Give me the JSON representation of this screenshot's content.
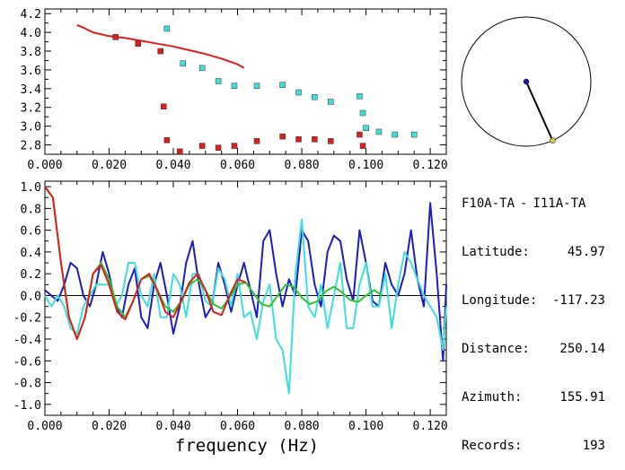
{
  "station_info": {
    "pair_a": "F10A-TA",
    "separator": "-",
    "pair_b": "I11A-TA",
    "fields": [
      {
        "label": "Latitude:",
        "value": "45.97"
      },
      {
        "label": "Longitude:",
        "value": "-117.23"
      },
      {
        "label": "Distance:",
        "value": "250.14"
      },
      {
        "label": "Azimuth:",
        "value": "155.91"
      },
      {
        "label": "Records:",
        "value": "193"
      }
    ]
  },
  "azimuth_dial": {
    "azimuth_deg": 155.91,
    "center_color": "#1a1aa6",
    "tip_color": "#d4c84a"
  },
  "colors": {
    "red": "#dd1c1c",
    "cyan": "#3fdede",
    "blue": "#1c1cc0",
    "green": "#28c828",
    "axis": "#000000"
  },
  "chart_data": [
    {
      "type": "scatter",
      "title": "",
      "xlabel": "",
      "ylabel": "",
      "xlim": [
        0.0,
        0.125
      ],
      "ylim": [
        2.7,
        4.25
      ],
      "xticks": [
        "0.000",
        "0.020",
        "0.040",
        "0.060",
        "0.080",
        "0.100",
        "0.120"
      ],
      "yticks": [
        "2.8",
        "3.0",
        "3.2",
        "3.4",
        "3.6",
        "3.8",
        "4.0",
        "4.2"
      ],
      "series": [
        {
          "kind": "line",
          "color": "#dd1c1c",
          "x": [
            0.01,
            0.012,
            0.015,
            0.02,
            0.025,
            0.03,
            0.035,
            0.04,
            0.045,
            0.05,
            0.055,
            0.06,
            0.062
          ],
          "y": [
            4.08,
            4.05,
            4.0,
            3.96,
            3.94,
            3.91,
            3.88,
            3.85,
            3.81,
            3.77,
            3.72,
            3.66,
            3.62
          ]
        },
        {
          "kind": "points",
          "color": "#3fdede",
          "x": [
            0.038,
            0.043,
            0.049,
            0.054,
            0.059,
            0.066,
            0.074,
            0.079,
            0.084,
            0.089,
            0.098,
            0.099,
            0.1,
            0.104,
            0.109,
            0.115
          ],
          "y": [
            4.04,
            3.67,
            3.62,
            3.48,
            3.43,
            3.43,
            3.44,
            3.36,
            3.31,
            3.26,
            3.32,
            3.14,
            2.98,
            2.94,
            2.91,
            2.91
          ]
        },
        {
          "kind": "points",
          "color": "#dd1c1c",
          "x": [
            0.022,
            0.029,
            0.036,
            0.037,
            0.038,
            0.042,
            0.049,
            0.054,
            0.059,
            0.066,
            0.074,
            0.079,
            0.084,
            0.089,
            0.098,
            0.099
          ],
          "y": [
            3.95,
            3.88,
            3.8,
            3.21,
            2.85,
            2.73,
            2.79,
            2.77,
            2.79,
            2.84,
            2.89,
            2.86,
            2.86,
            2.84,
            2.91,
            2.79
          ]
        }
      ]
    },
    {
      "type": "line",
      "title": "",
      "xlabel": "frequency (Hz)",
      "ylabel": "",
      "xlim": [
        0.0,
        0.125
      ],
      "ylim": [
        -1.1,
        1.05
      ],
      "xticks": [
        "0.000",
        "0.020",
        "0.040",
        "0.060",
        "0.080",
        "0.100",
        "0.120"
      ],
      "yticks": [
        "1.0",
        "0.8",
        "0.6",
        "0.4",
        "0.2",
        "0.0",
        "-0.2",
        "-0.4",
        "-0.6",
        "-0.8",
        "-1.0"
      ],
      "series": [
        {
          "color": "#1c1cc0",
          "x": [
            0.0,
            0.002,
            0.004,
            0.006,
            0.008,
            0.01,
            0.012,
            0.014,
            0.016,
            0.018,
            0.02,
            0.022,
            0.024,
            0.026,
            0.028,
            0.03,
            0.032,
            0.034,
            0.036,
            0.038,
            0.04,
            0.042,
            0.044,
            0.046,
            0.048,
            0.05,
            0.052,
            0.054,
            0.056,
            0.058,
            0.06,
            0.062,
            0.064,
            0.066,
            0.068,
            0.07,
            0.072,
            0.074,
            0.076,
            0.078,
            0.08,
            0.082,
            0.084,
            0.086,
            0.088,
            0.09,
            0.092,
            0.094,
            0.096,
            0.098,
            0.1,
            0.102,
            0.104,
            0.106,
            0.108,
            0.11,
            0.112,
            0.114,
            0.116,
            0.118,
            0.12,
            0.122,
            0.124,
            0.125
          ],
          "y": [
            0.05,
            0.0,
            -0.05,
            0.1,
            0.3,
            0.25,
            0.0,
            -0.1,
            0.1,
            0.4,
            0.2,
            -0.1,
            -0.2,
            0.1,
            0.25,
            -0.2,
            -0.3,
            0.1,
            0.3,
            0.0,
            -0.35,
            -0.1,
            0.3,
            0.5,
            0.1,
            -0.2,
            -0.1,
            0.3,
            0.1,
            -0.15,
            0.1,
            0.3,
            0.05,
            -0.2,
            0.5,
            0.6,
            0.2,
            -0.1,
            0.15,
            0.0,
            0.6,
            0.5,
            0.1,
            -0.1,
            0.4,
            0.55,
            0.5,
            0.15,
            -0.05,
            0.6,
            0.3,
            -0.05,
            -0.1,
            0.3,
            0.1,
            0.0,
            0.2,
            0.6,
            0.15,
            -0.1,
            0.85,
            0.2,
            -0.6,
            0.1
          ]
        },
        {
          "color": "#3fdede",
          "x": [
            0.0,
            0.002,
            0.004,
            0.006,
            0.008,
            0.01,
            0.012,
            0.014,
            0.016,
            0.018,
            0.02,
            0.022,
            0.024,
            0.026,
            0.028,
            0.03,
            0.032,
            0.034,
            0.036,
            0.038,
            0.04,
            0.042,
            0.044,
            0.046,
            0.048,
            0.05,
            0.052,
            0.054,
            0.056,
            0.058,
            0.06,
            0.062,
            0.064,
            0.066,
            0.068,
            0.07,
            0.072,
            0.074,
            0.076,
            0.078,
            0.08,
            0.082,
            0.084,
            0.086,
            0.088,
            0.09,
            0.092,
            0.094,
            0.096,
            0.098,
            0.1,
            0.102,
            0.104,
            0.106,
            0.108,
            0.11,
            0.112,
            0.114,
            0.116,
            0.118,
            0.12,
            0.122,
            0.124,
            0.125
          ],
          "y": [
            0.0,
            -0.1,
            0.0,
            -0.1,
            -0.3,
            -0.35,
            -0.1,
            0.0,
            0.1,
            0.1,
            0.1,
            -0.1,
            0.0,
            0.3,
            0.3,
            0.0,
            -0.1,
            0.2,
            -0.2,
            -0.2,
            0.2,
            0.1,
            -0.2,
            0.2,
            0.2,
            -0.05,
            -0.1,
            0.25,
            0.15,
            -0.1,
            0.2,
            -0.2,
            -0.15,
            -0.4,
            -0.05,
            0.1,
            -0.4,
            -0.5,
            -0.9,
            0.2,
            0.7,
            -0.1,
            -0.2,
            0.1,
            -0.3,
            0.0,
            0.3,
            -0.3,
            -0.3,
            0.1,
            0.3,
            -0.1,
            -0.1,
            0.2,
            -0.3,
            0.1,
            0.4,
            0.3,
            0.15,
            0.0,
            -0.1,
            -0.2,
            -0.5,
            -0.1
          ]
        },
        {
          "color": "#28c828",
          "x": [
            0.0,
            0.0025,
            0.005,
            0.0075,
            0.01,
            0.0125,
            0.015,
            0.0175,
            0.02,
            0.0225,
            0.025,
            0.0275,
            0.03,
            0.0325,
            0.035,
            0.0375,
            0.04,
            0.0425,
            0.045,
            0.0475,
            0.05,
            0.0525,
            0.055,
            0.0575,
            0.06,
            0.0625,
            0.065,
            0.0675,
            0.07,
            0.0725,
            0.075,
            0.0775,
            0.08,
            0.0825,
            0.085,
            0.0875,
            0.09,
            0.0925,
            0.095,
            0.0975,
            0.1,
            0.1025,
            0.105
          ],
          "y": [
            1.0,
            0.9,
            0.3,
            -0.2,
            -0.4,
            -0.2,
            0.2,
            0.3,
            0.15,
            -0.1,
            -0.2,
            -0.05,
            0.15,
            0.18,
            0.05,
            -0.1,
            -0.15,
            -0.05,
            0.1,
            0.15,
            0.05,
            -0.08,
            -0.12,
            -0.02,
            0.1,
            0.12,
            0.02,
            -0.08,
            -0.1,
            0.0,
            0.1,
            0.08,
            -0.02,
            -0.08,
            -0.05,
            0.04,
            0.08,
            0.03,
            -0.04,
            -0.06,
            0.0,
            0.05,
            0.0
          ]
        },
        {
          "color": "#dd1c1c",
          "x": [
            0.0,
            0.0025,
            0.005,
            0.0075,
            0.01,
            0.0125,
            0.015,
            0.0175,
            0.02,
            0.0225,
            0.025,
            0.0275,
            0.03,
            0.0325,
            0.035,
            0.0375,
            0.04,
            0.0425,
            0.045,
            0.0475,
            0.05,
            0.0525,
            0.055,
            0.0575,
            0.06,
            0.0625
          ],
          "y": [
            1.0,
            0.9,
            0.3,
            -0.2,
            -0.4,
            -0.2,
            0.2,
            0.28,
            0.1,
            -0.15,
            -0.22,
            -0.05,
            0.15,
            0.2,
            0.05,
            -0.15,
            -0.2,
            -0.05,
            0.12,
            0.2,
            0.05,
            -0.15,
            -0.18,
            0.0,
            0.15,
            0.12
          ]
        }
      ]
    }
  ]
}
